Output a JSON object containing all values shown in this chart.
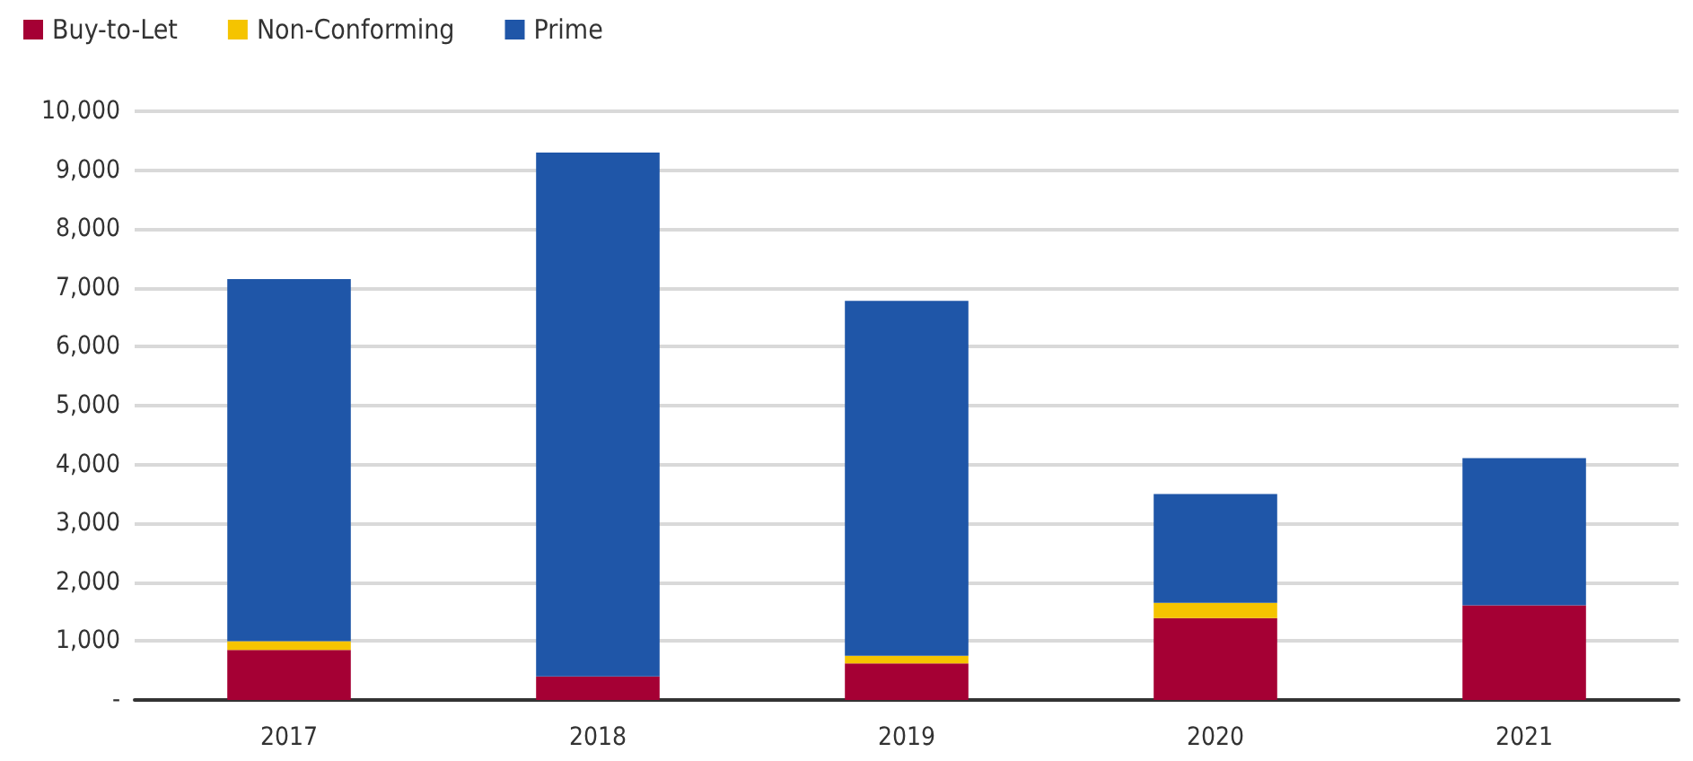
{
  "chart_data": {
    "type": "bar",
    "stacked": true,
    "categories": [
      "2017",
      "2018",
      "2019",
      "2020",
      "2021"
    ],
    "series": [
      {
        "name": "Buy-to-Let",
        "color": "#a50034",
        "values": [
          850,
          400,
          620,
          1390,
          1610
        ]
      },
      {
        "name": "Non-Conforming",
        "color": "#f5c400",
        "values": [
          150,
          0,
          130,
          260,
          0
        ]
      },
      {
        "name": "Prime",
        "color": "#1f56a8",
        "values": [
          6150,
          8900,
          6030,
          1850,
          2500
        ]
      }
    ],
    "ylim": [
      0,
      10000
    ],
    "yticks": [
      {
        "value": 0,
        "label": "-"
      },
      {
        "value": 1000,
        "label": "1,000"
      },
      {
        "value": 2000,
        "label": "2,000"
      },
      {
        "value": 3000,
        "label": "3,000"
      },
      {
        "value": 4000,
        "label": "4,000"
      },
      {
        "value": 5000,
        "label": "5,000"
      },
      {
        "value": 6000,
        "label": "6,000"
      },
      {
        "value": 7000,
        "label": "7,000"
      },
      {
        "value": 8000,
        "label": "8,000"
      },
      {
        "value": 9000,
        "label": "9,000"
      },
      {
        "value": 10000,
        "label": "10,000"
      }
    ],
    "grid": "y",
    "legend": "top left"
  }
}
